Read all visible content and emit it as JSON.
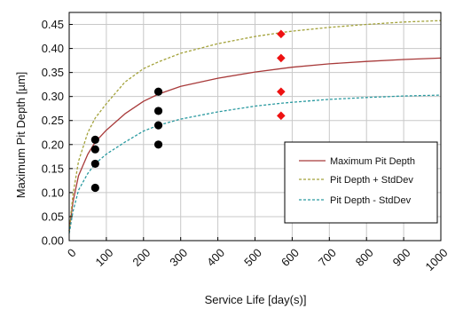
{
  "chart_data": {
    "type": "line",
    "xlabel": "Service Life [day(s)]",
    "ylabel": "Maximum Pit Depth [µm]",
    "xlim": [
      0,
      1000
    ],
    "ylim": [
      0,
      0.475
    ],
    "x_ticks": [
      0,
      100,
      200,
      300,
      400,
      500,
      600,
      700,
      800,
      900,
      1000
    ],
    "y_ticks": [
      0.0,
      0.05,
      0.1,
      0.15,
      0.2,
      0.25,
      0.3,
      0.35,
      0.4,
      0.45
    ],
    "x_tick_labels": [
      "0",
      "100",
      "200",
      "300",
      "400",
      "500",
      "600",
      "700",
      "800",
      "900",
      "1000"
    ],
    "y_tick_labels": [
      "0.00",
      "0.05",
      "0.10",
      "0.15",
      "0.20",
      "0.25",
      "0.30",
      "0.35",
      "0.40",
      "0.45"
    ],
    "grid": true,
    "legend_position": "lower-right",
    "series": [
      {
        "name": "Maximum Pit Depth",
        "style": "solid",
        "color": "#a83a3a",
        "x": [
          0,
          10,
          25,
          50,
          70,
          100,
          150,
          200,
          240,
          300,
          400,
          500,
          570,
          600,
          700,
          800,
          900,
          1000
        ],
        "y": [
          0.02,
          0.08,
          0.135,
          0.18,
          0.205,
          0.23,
          0.264,
          0.29,
          0.305,
          0.321,
          0.338,
          0.351,
          0.358,
          0.361,
          0.368,
          0.373,
          0.377,
          0.38
        ]
      },
      {
        "name": "Pit Depth + StdDev",
        "style": "dashed",
        "color": "#a3a23a",
        "x": [
          0,
          10,
          25,
          50,
          70,
          100,
          150,
          200,
          240,
          300,
          400,
          500,
          570,
          600,
          700,
          800,
          900,
          1000
        ],
        "y": [
          0.02,
          0.095,
          0.165,
          0.225,
          0.255,
          0.285,
          0.33,
          0.358,
          0.372,
          0.39,
          0.41,
          0.425,
          0.433,
          0.436,
          0.444,
          0.45,
          0.455,
          0.458
        ]
      },
      {
        "name": "Pit Depth - StdDev",
        "style": "dashed",
        "color": "#2a9aa0",
        "x": [
          0,
          10,
          25,
          50,
          70,
          100,
          150,
          200,
          240,
          300,
          400,
          500,
          570,
          600,
          700,
          800,
          900,
          1000
        ],
        "y": [
          0.015,
          0.06,
          0.105,
          0.14,
          0.16,
          0.18,
          0.205,
          0.228,
          0.24,
          0.253,
          0.268,
          0.28,
          0.286,
          0.288,
          0.294,
          0.298,
          0.301,
          0.303
        ]
      }
    ],
    "points": [
      {
        "marker": "circle",
        "color": "#000000",
        "x": 70,
        "y": 0.21
      },
      {
        "marker": "circle",
        "color": "#000000",
        "x": 70,
        "y": 0.19
      },
      {
        "marker": "circle",
        "color": "#000000",
        "x": 70,
        "y": 0.16
      },
      {
        "marker": "circle",
        "color": "#000000",
        "x": 70,
        "y": 0.11
      },
      {
        "marker": "circle",
        "color": "#000000",
        "x": 240,
        "y": 0.31
      },
      {
        "marker": "circle",
        "color": "#000000",
        "x": 240,
        "y": 0.27
      },
      {
        "marker": "circle",
        "color": "#000000",
        "x": 240,
        "y": 0.24
      },
      {
        "marker": "circle",
        "color": "#000000",
        "x": 240,
        "y": 0.2
      },
      {
        "marker": "diamond",
        "color": "#ee1111",
        "x": 570,
        "y": 0.43
      },
      {
        "marker": "diamond",
        "color": "#ee1111",
        "x": 570,
        "y": 0.38
      },
      {
        "marker": "diamond",
        "color": "#ee1111",
        "x": 570,
        "y": 0.31
      },
      {
        "marker": "diamond",
        "color": "#ee1111",
        "x": 570,
        "y": 0.26
      }
    ],
    "colors": {
      "grid": "#c8c8c8",
      "axis": "#000000"
    }
  }
}
